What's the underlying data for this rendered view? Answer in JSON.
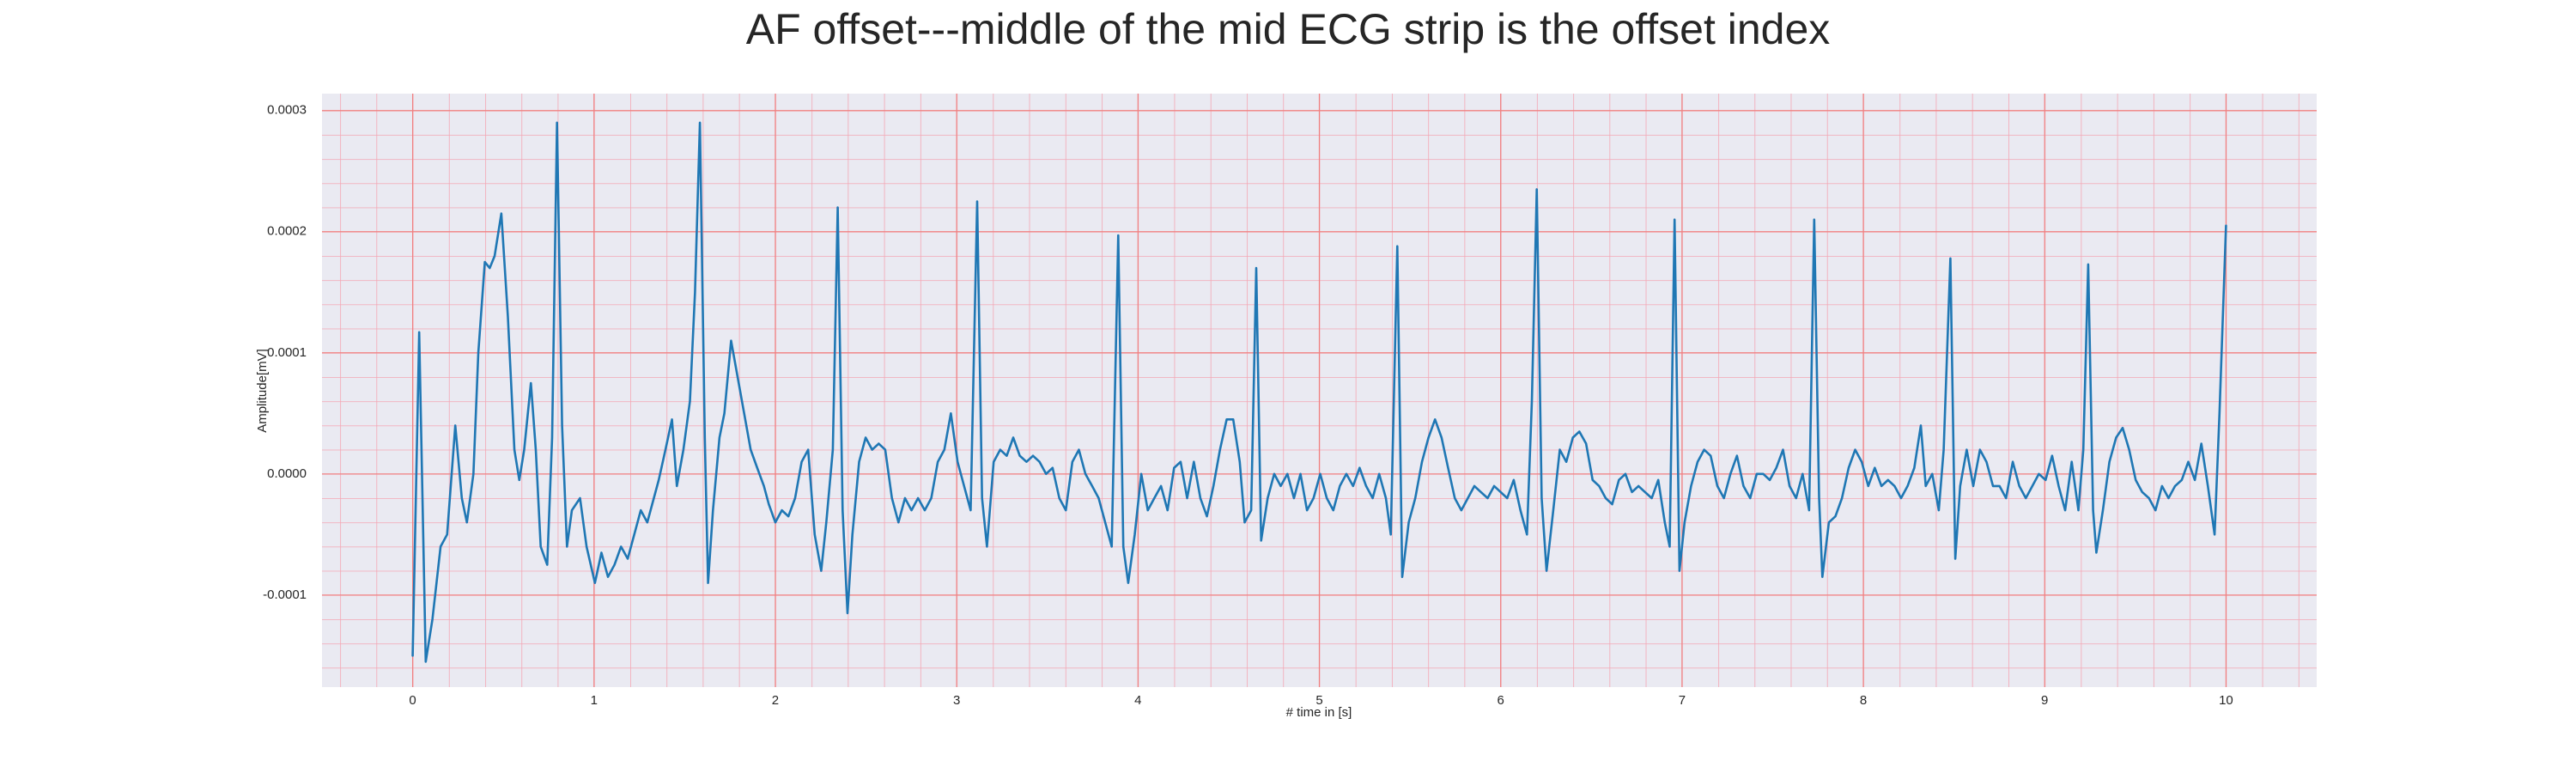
{
  "chart_data": {
    "type": "line",
    "title": "AF offset---middle of the mid ECG strip is the offset index",
    "xlabel": "# time in [s]",
    "ylabel": "Amplitude[mV]",
    "color": "#1f77b4",
    "grid": true,
    "minor_grid": true,
    "xlim": [
      -0.5,
      10.5
    ],
    "ylim": [
      -0.000176,
      0.000314
    ],
    "xticks": [
      0,
      1,
      2,
      3,
      4,
      5,
      6,
      7,
      8,
      9,
      10
    ],
    "yticks": [
      -0.0001,
      {
        "value": 0,
        "label": "0.0000"
      },
      0.0001,
      0.0002,
      0.0003
    ],
    "x": [
      0,
      0.036,
      0.072,
      0.109,
      0.154,
      0.19,
      0.235,
      0.271,
      0.299,
      0.335,
      0.362,
      0.398,
      0.425,
      0.452,
      0.489,
      0.525,
      0.561,
      0.588,
      0.615,
      0.652,
      0.679,
      0.706,
      0.742,
      0.769,
      0.796,
      0.824,
      0.851,
      0.878,
      0.923,
      0.959,
      1.005,
      1.041,
      1.077,
      1.113,
      1.149,
      1.186,
      1.222,
      1.258,
      1.294,
      1.33,
      1.357,
      1.394,
      1.43,
      1.457,
      1.493,
      1.529,
      1.557,
      1.584,
      1.611,
      1.629,
      1.656,
      1.692,
      1.719,
      1.756,
      1.792,
      1.828,
      1.864,
      1.9,
      1.937,
      1.964,
      2,
      2.036,
      2.072,
      2.109,
      2.145,
      2.181,
      2.217,
      2.253,
      2.281,
      2.317,
      2.344,
      2.371,
      2.398,
      2.425,
      2.462,
      2.498,
      2.534,
      2.57,
      2.606,
      2.643,
      2.679,
      2.715,
      2.751,
      2.787,
      2.824,
      2.86,
      2.896,
      2.932,
      2.968,
      3.005,
      3.041,
      3.077,
      3.113,
      3.14,
      3.167,
      3.204,
      3.24,
      3.276,
      3.312,
      3.348,
      3.385,
      3.421,
      3.457,
      3.493,
      3.529,
      3.566,
      3.602,
      3.638,
      3.674,
      3.71,
      3.747,
      3.783,
      3.819,
      3.855,
      3.891,
      3.919,
      3.946,
      3.982,
      4.018,
      4.054,
      4.09,
      4.127,
      4.163,
      4.199,
      4.235,
      4.271,
      4.308,
      4.344,
      4.38,
      4.416,
      4.452,
      4.489,
      4.525,
      4.561,
      4.588,
      4.624,
      4.652,
      4.679,
      4.715,
      4.751,
      4.787,
      4.824,
      4.86,
      4.896,
      4.932,
      4.968,
      5.005,
      5.041,
      5.077,
      5.113,
      5.149,
      5.186,
      5.222,
      5.258,
      5.294,
      5.33,
      5.367,
      5.394,
      5.43,
      5.457,
      5.493,
      5.529,
      5.566,
      5.602,
      5.638,
      5.674,
      5.71,
      5.747,
      5.783,
      5.819,
      5.855,
      5.891,
      5.928,
      5.964,
      6,
      6.036,
      6.072,
      6.109,
      6.145,
      6.172,
      6.199,
      6.226,
      6.253,
      6.29,
      6.326,
      6.362,
      6.398,
      6.434,
      6.471,
      6.507,
      6.543,
      6.579,
      6.615,
      6.652,
      6.688,
      6.724,
      6.76,
      6.796,
      6.833,
      6.869,
      6.905,
      6.932,
      6.959,
      6.986,
      7.014,
      7.05,
      7.086,
      7.122,
      7.158,
      7.195,
      7.231,
      7.267,
      7.303,
      7.339,
      7.376,
      7.412,
      7.448,
      7.484,
      7.52,
      7.557,
      7.593,
      7.629,
      7.665,
      7.701,
      7.729,
      7.756,
      7.774,
      7.81,
      7.846,
      7.882,
      7.919,
      7.955,
      7.991,
      8.027,
      8.063,
      8.1,
      8.136,
      8.172,
      8.208,
      8.244,
      8.281,
      8.317,
      8.344,
      8.38,
      8.416,
      8.443,
      8.48,
      8.507,
      8.534,
      8.57,
      8.606,
      8.643,
      8.679,
      8.715,
      8.751,
      8.787,
      8.824,
      8.86,
      8.896,
      8.932,
      8.968,
      9.005,
      9.041,
      9.077,
      9.113,
      9.149,
      9.186,
      9.213,
      9.24,
      9.267,
      9.285,
      9.321,
      9.357,
      9.394,
      9.43,
      9.466,
      9.502,
      9.538,
      9.575,
      9.611,
      9.647,
      9.683,
      9.719,
      9.756,
      9.792,
      9.828,
      9.864,
      9.9,
      9.937,
      9.964,
      10
    ],
    "values": [
      -0.00015,
      0.000117,
      -0.000155,
      -0.00012,
      -6e-05,
      -5e-05,
      4e-05,
      -2e-05,
      -4e-05,
      0,
      0.0001,
      0.000175,
      0.00017,
      0.00018,
      0.000215,
      0.00013,
      2e-05,
      -5e-06,
      2e-05,
      7.5e-05,
      2e-05,
      -6e-05,
      -7.5e-05,
      3e-05,
      0.00029,
      4e-05,
      -6e-05,
      -3e-05,
      -2e-05,
      -6e-05,
      -9e-05,
      -6.5e-05,
      -8.5e-05,
      -7.5e-05,
      -6e-05,
      -7e-05,
      -5e-05,
      -3e-05,
      -4e-05,
      -2e-05,
      -5e-06,
      2e-05,
      4.5e-05,
      -1e-05,
      2e-05,
      6e-05,
      0.00015,
      0.00029,
      3e-05,
      -9e-05,
      -3e-05,
      3e-05,
      5e-05,
      0.00011,
      8e-05,
      5e-05,
      2e-05,
      5e-06,
      -1e-05,
      -2.5e-05,
      -4e-05,
      -3e-05,
      -3.5e-05,
      -2e-05,
      1e-05,
      2e-05,
      -5e-05,
      -8e-05,
      -4e-05,
      2e-05,
      0.00022,
      -3e-05,
      -0.000115,
      -5e-05,
      1e-05,
      3e-05,
      2e-05,
      2.5e-05,
      2e-05,
      -2e-05,
      -4e-05,
      -2e-05,
      -3e-05,
      -2e-05,
      -3e-05,
      -2e-05,
      1e-05,
      2e-05,
      5e-05,
      1e-05,
      -1e-05,
      -3e-05,
      0.000225,
      -2e-05,
      -6e-05,
      1e-05,
      2e-05,
      1.5e-05,
      3e-05,
      1.5e-05,
      1e-05,
      1.5e-05,
      1e-05,
      0,
      5e-06,
      -2e-05,
      -3e-05,
      1e-05,
      2e-05,
      0,
      -1e-05,
      -2e-05,
      -4e-05,
      -6e-05,
      0.000197,
      -6e-05,
      -9e-05,
      -5e-05,
      0,
      -3e-05,
      -2e-05,
      -1e-05,
      -3e-05,
      5e-06,
      1e-05,
      -2e-05,
      1e-05,
      -2e-05,
      -3.5e-05,
      -1e-05,
      2e-05,
      4.5e-05,
      4.5e-05,
      1e-05,
      -4e-05,
      -3e-05,
      0.00017,
      -5.5e-05,
      -2e-05,
      0,
      -1e-05,
      0,
      -2e-05,
      0,
      -3e-05,
      -2e-05,
      0,
      -2e-05,
      -3e-05,
      -1e-05,
      0,
      -1e-05,
      5e-06,
      -1e-05,
      -2e-05,
      0,
      -2e-05,
      -5e-05,
      0.000188,
      -8.5e-05,
      -4e-05,
      -2e-05,
      1e-05,
      3e-05,
      4.5e-05,
      3e-05,
      5e-06,
      -2e-05,
      -3e-05,
      -2e-05,
      -1e-05,
      -1.5e-05,
      -2e-05,
      -1e-05,
      -1.5e-05,
      -2e-05,
      -5e-06,
      -3e-05,
      -5e-05,
      6e-05,
      0.000235,
      -2e-05,
      -8e-05,
      -3e-05,
      2e-05,
      1e-05,
      3e-05,
      3.5e-05,
      2.5e-05,
      -5e-06,
      -1e-05,
      -2e-05,
      -2.5e-05,
      -5e-06,
      0,
      -1.5e-05,
      -1e-05,
      -1.5e-05,
      -2e-05,
      -5e-06,
      -4e-05,
      -6e-05,
      0.00021,
      -8e-05,
      -4e-05,
      -1e-05,
      1e-05,
      2e-05,
      1.5e-05,
      -1e-05,
      -2e-05,
      0,
      1.5e-05,
      -1e-05,
      -2e-05,
      0,
      0,
      -5e-06,
      5e-06,
      2e-05,
      -1e-05,
      -2e-05,
      0,
      -3e-05,
      0.00021,
      -2e-05,
      -8.5e-05,
      -4e-05,
      -3.5e-05,
      -2e-05,
      5e-06,
      2e-05,
      1e-05,
      -1e-05,
      5e-06,
      -1e-05,
      -5e-06,
      -1e-05,
      -2e-05,
      -1e-05,
      5e-06,
      4e-05,
      -1e-05,
      0,
      -3e-05,
      2e-05,
      0.000178,
      -7e-05,
      -1e-05,
      2e-05,
      -1e-05,
      2e-05,
      1e-05,
      -1e-05,
      -1e-05,
      -2e-05,
      1e-05,
      -1e-05,
      -2e-05,
      -1e-05,
      0,
      -5e-06,
      1.5e-05,
      -1e-05,
      -3e-05,
      1e-05,
      -3e-05,
      2e-05,
      0.000173,
      -3e-05,
      -6.5e-05,
      -3e-05,
      1e-05,
      3e-05,
      3.8e-05,
      2e-05,
      -5e-06,
      -1.5e-05,
      -2e-05,
      -3e-05,
      -1e-05,
      -2e-05,
      -1e-05,
      -5e-06,
      1e-05,
      -5e-06,
      2.5e-05,
      -1e-05,
      -5e-05,
      5e-05,
      0.000205
    ]
  }
}
